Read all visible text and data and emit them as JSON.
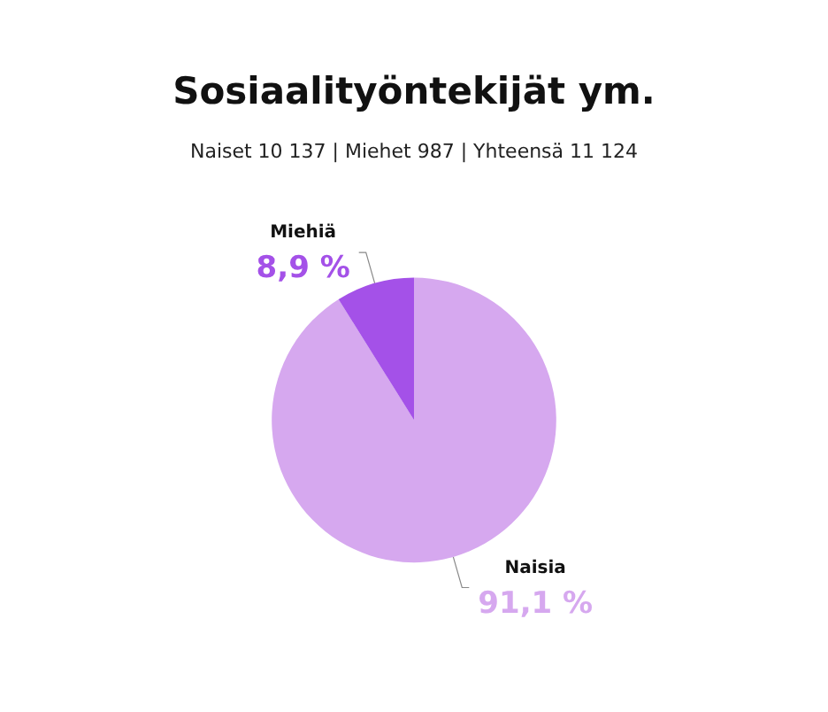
{
  "chart_data": {
    "type": "pie",
    "title": "Sosiaalityöntekijät ym.",
    "subtitle": "Naiset 10 137 | Miehet 987 | Yhteensä 11 124",
    "categories": [
      "Naisia",
      "Miehiä"
    ],
    "values": [
      91.1,
      8.9
    ],
    "value_labels": [
      "91,1 %",
      "8,9 %"
    ],
    "colors": [
      "#d6a8ef",
      "#a451e8"
    ]
  }
}
